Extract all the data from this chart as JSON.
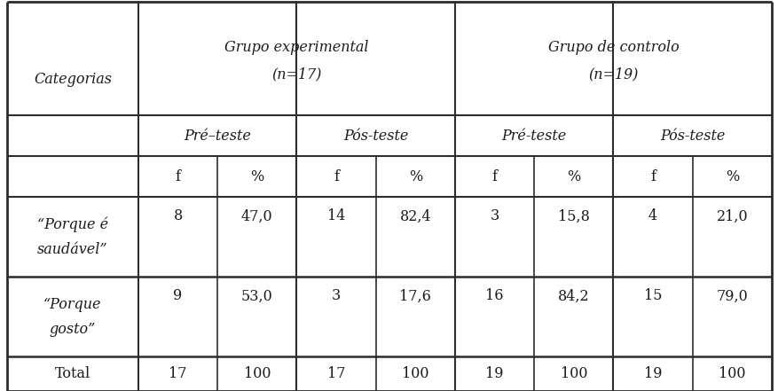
{
  "col_header_1": "Grupo experimental",
  "col_header_1b": "(n=17)",
  "col_header_2": "Grupo de controlo",
  "col_header_2b": "(n=19)",
  "sub_header_1a": "Pré–teste",
  "sub_header_1b": "Pós-teste",
  "sub_header_2a": "Pré-teste",
  "sub_header_2b": "Pós-teste",
  "row_header": "Categorias",
  "f_pct": [
    "f",
    "%",
    "f",
    "%",
    "f",
    "%",
    "f",
    "%"
  ],
  "rows": [
    {
      "label_line1": "“Porque é",
      "label_line2": "saudável”",
      "values": [
        "8",
        "47,0",
        "14",
        "82,4",
        "3",
        "15,8",
        "4",
        "21,0"
      ]
    },
    {
      "label_line1": "“Porque",
      "label_line2": "gosto”",
      "values": [
        "9",
        "53,0",
        "3",
        "17,6",
        "16",
        "84,2",
        "15",
        "79,0"
      ]
    },
    {
      "label_line1": "Total",
      "label_line2": "",
      "values": [
        "17",
        "100",
        "17",
        "100",
        "19",
        "100",
        "19",
        "100"
      ]
    }
  ],
  "bg_color": "#ffffff",
  "line_color": "#2c2c2c",
  "text_color": "#1a1a1a",
  "font_size": 11.5,
  "header_font_size": 11.5
}
